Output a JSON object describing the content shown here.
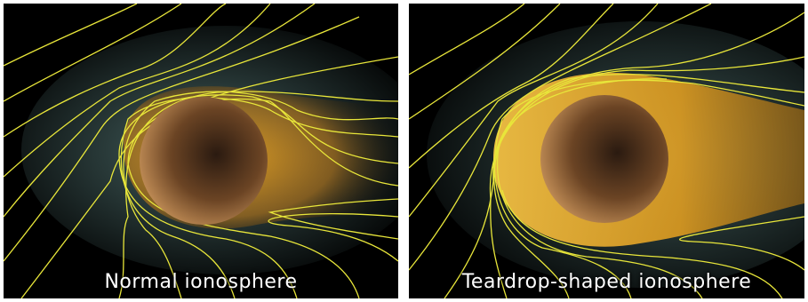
{
  "panels": [
    {
      "id": "normal",
      "caption": "Normal ionosphere"
    },
    {
      "id": "teardrop",
      "caption": "Teardrop-shaped ionosphere"
    }
  ],
  "colors": {
    "background": "#000000",
    "field_lines": "#e8e63a",
    "ionosphere_glow": "#e9a21f",
    "halo": "#7fb3b0",
    "planet": "#8a5a2e",
    "caption": "#ffffff"
  },
  "icons": [
    "venus-planet",
    "magnetic-field-lines"
  ]
}
